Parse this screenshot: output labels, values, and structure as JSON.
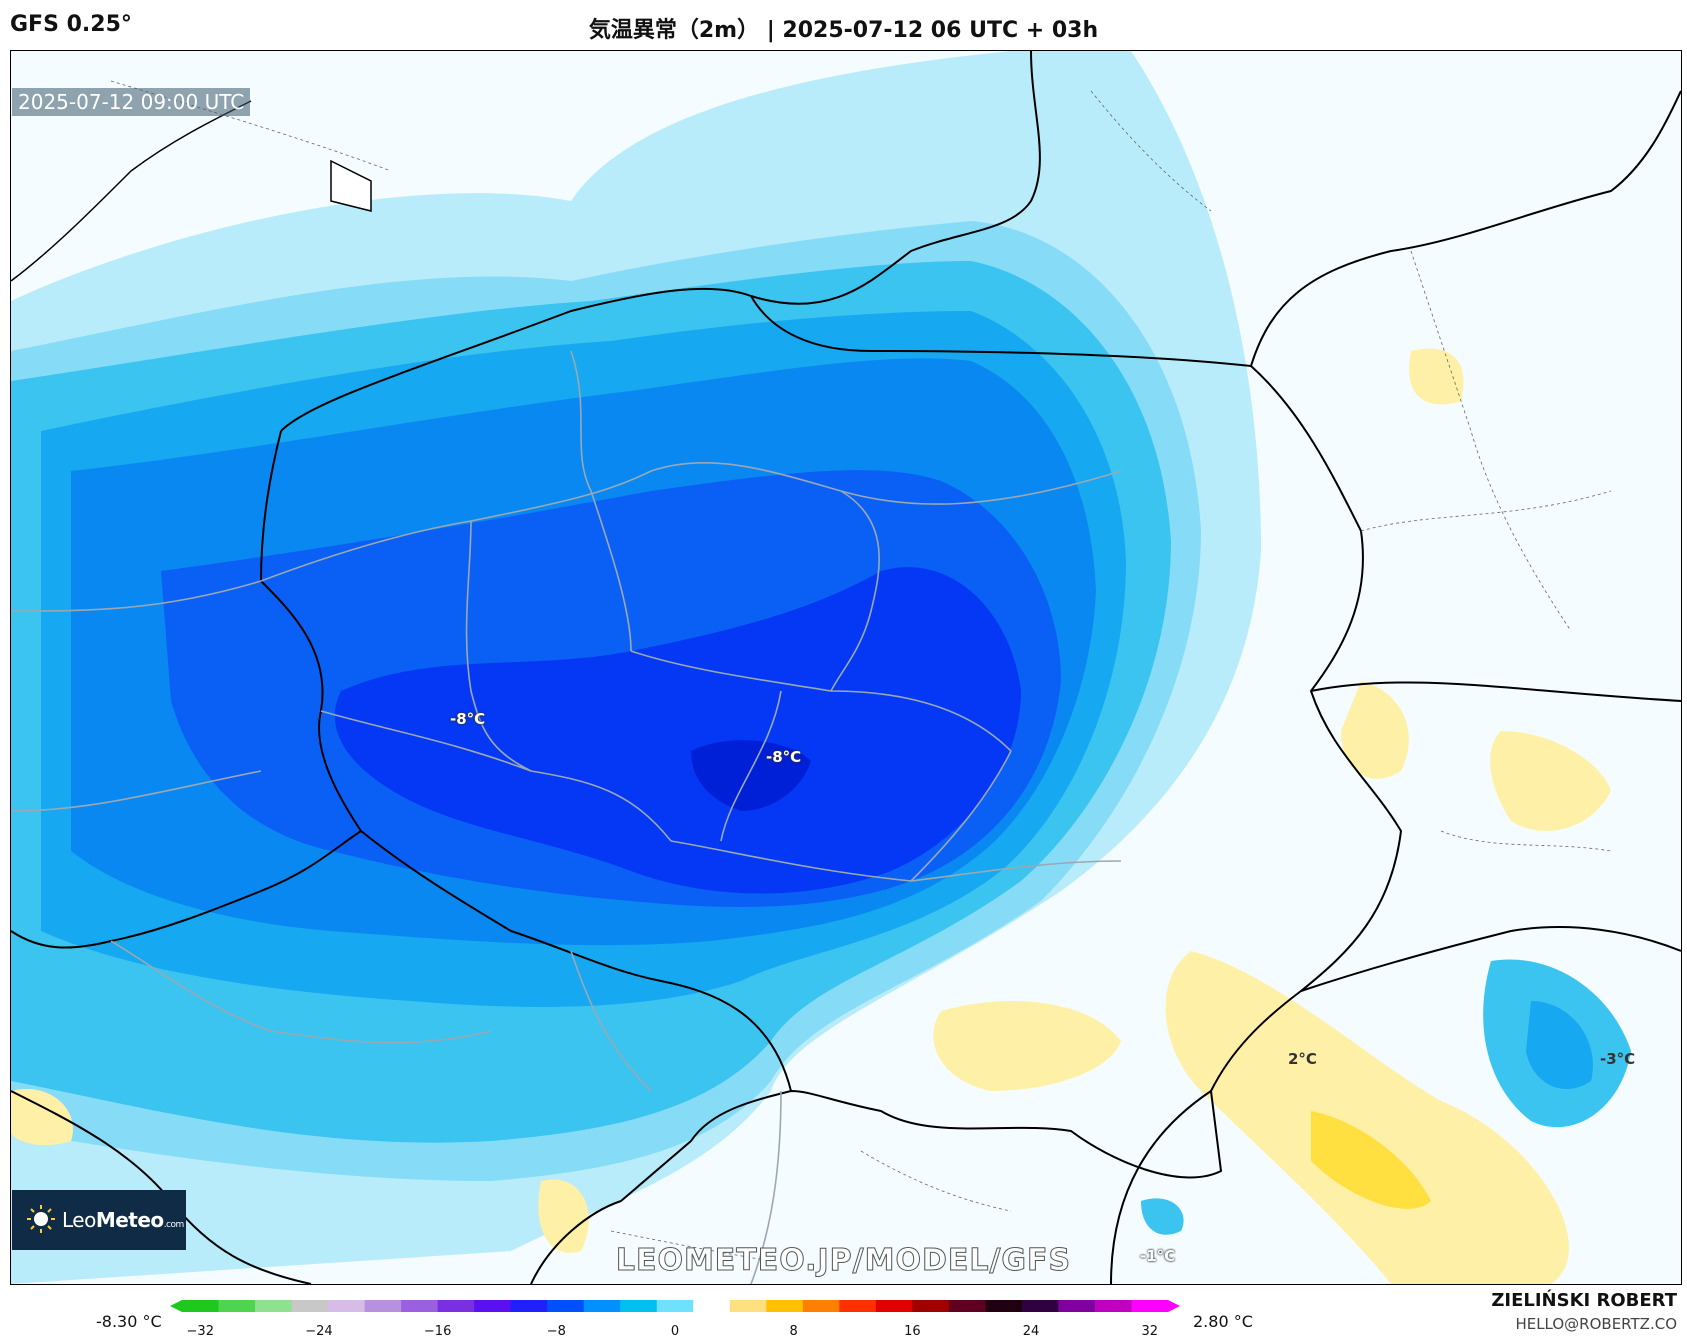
{
  "header": {
    "model": "GFS 0.25°",
    "title": "気温異常（2m） | 2025-07-12 06 UTC + 03h"
  },
  "map": {
    "valid_time": "2025-07-12 09:00 UTC",
    "contour_labels": [
      "-8°C",
      "-8°C",
      "2°C",
      "-3°C",
      "-1°C"
    ],
    "watermark": "LEOMETEO.JP/MODEL/GFS"
  },
  "logo": {
    "brand_light": "Leo",
    "brand_bold": "Meteo",
    "brand_suffix": ".com"
  },
  "legend": {
    "min_label": "-8.30 °C",
    "max_label": "2.80 °C",
    "ticks": [
      "−32",
      "−24",
      "−16",
      "−8",
      "0",
      "8",
      "16",
      "24",
      "32"
    ],
    "colors": [
      "#1ec81e",
      "#4fd44f",
      "#8fe08f",
      "#c8c8c8",
      "#d8bce8",
      "#b890e0",
      "#9a60e0",
      "#7a30e0",
      "#5a10f0",
      "#2020ff",
      "#0050ff",
      "#0090ff",
      "#00c0f0",
      "#70e0ff",
      "#ffffff",
      "#ffe080",
      "#ffc000",
      "#ff8000",
      "#ff3000",
      "#e00000",
      "#a00000",
      "#600020",
      "#200010",
      "#300040",
      "#8000a0",
      "#c000c0",
      "#ff00ff"
    ]
  },
  "author": {
    "name": "ZIELIŃSKI ROBERT",
    "email": "HELLO@ROBERTZ.CO"
  }
}
